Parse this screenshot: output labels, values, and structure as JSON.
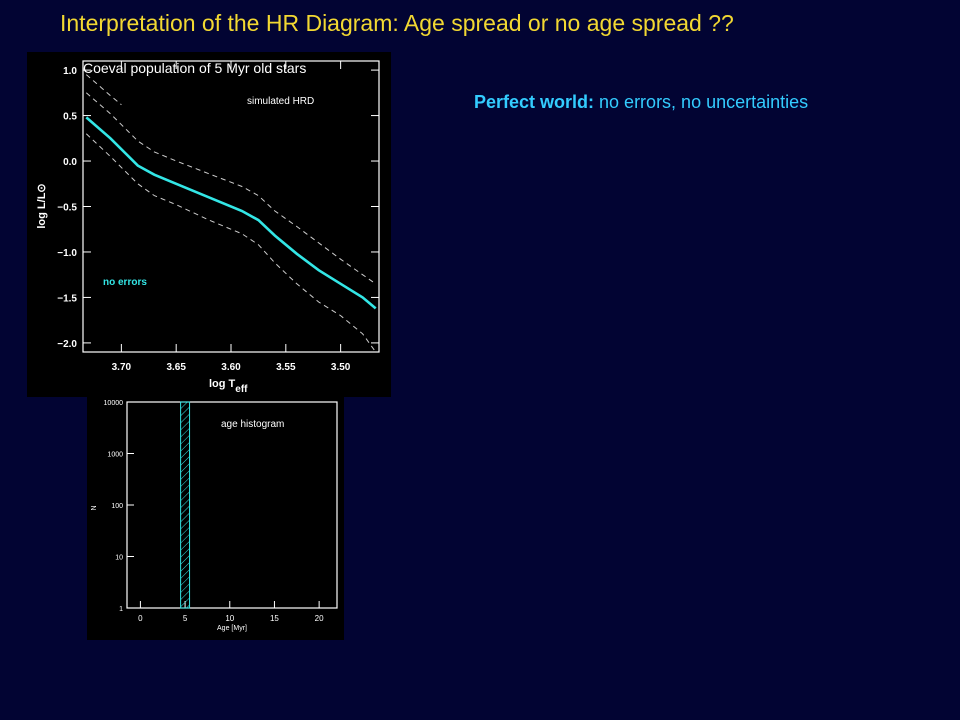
{
  "slide": {
    "title": "Interpretation of the HR Diagram:  Age spread or no age spread ??",
    "subtitle_bold": "Perfect world:",
    "subtitle_rest": " no errors, no uncertainties",
    "title_color": "#f2d832",
    "subtitle_color": "#33ccff",
    "background": "#020433"
  },
  "chart_data": [
    {
      "type": "line",
      "title": "Coeval population of 5 Myr old stars",
      "annotation": "simulated HRD",
      "legend_label": "no errors",
      "xlabel_main": "log T",
      "xlabel_sub": "eff",
      "ylabel": "log L/L⊙",
      "x_reversed": true,
      "xlim": [
        3.735,
        3.465
      ],
      "ylim": [
        -2.1,
        1.1
      ],
      "xticks": [
        3.7,
        3.65,
        3.6,
        3.55,
        3.5
      ],
      "xtick_labels": [
        "3.70",
        "3.65",
        "3.60",
        "3.55",
        "3.50"
      ],
      "yticks": [
        1.0,
        0.5,
        0.0,
        -0.5,
        -1.0,
        -1.5,
        -2.0
      ],
      "ytick_labels": [
        "1.0",
        "0.5",
        "0.0",
        "−0.5",
        "−1.0",
        "−1.5",
        "−2.0"
      ],
      "series": [
        {
          "role": "isochrone",
          "color": "#33e6e6",
          "x": [
            3.732,
            3.71,
            3.685,
            3.67,
            3.65,
            3.62,
            3.59,
            3.575,
            3.56,
            3.54,
            3.52,
            3.5,
            3.48,
            3.468
          ],
          "y": [
            0.48,
            0.25,
            -0.05,
            -0.15,
            -0.25,
            -0.4,
            -0.55,
            -0.65,
            -0.82,
            -1.02,
            -1.2,
            -1.35,
            -1.5,
            -1.62
          ]
        },
        {
          "role": "upper-bound",
          "color": "#cccccc",
          "dashed": true,
          "x": [
            3.732,
            3.71,
            3.685,
            3.67,
            3.65,
            3.62,
            3.59,
            3.575,
            3.56,
            3.54,
            3.52,
            3.5,
            3.48,
            3.468
          ],
          "y": [
            0.75,
            0.52,
            0.22,
            0.1,
            0.0,
            -0.14,
            -0.28,
            -0.38,
            -0.55,
            -0.72,
            -0.9,
            -1.08,
            -1.25,
            -1.35
          ]
        },
        {
          "role": "lower-bound",
          "color": "#cccccc",
          "dashed": true,
          "x": [
            3.732,
            3.71,
            3.685,
            3.67,
            3.65,
            3.62,
            3.59,
            3.575,
            3.56,
            3.54,
            3.52,
            3.5,
            3.48,
            3.468
          ],
          "y": [
            0.3,
            0.05,
            -0.25,
            -0.38,
            -0.48,
            -0.65,
            -0.8,
            -0.92,
            -1.12,
            -1.35,
            -1.55,
            -1.7,
            -1.9,
            -2.1
          ]
        },
        {
          "role": "outer-envelope",
          "color": "#cccccc",
          "dashed": true,
          "x": [
            3.732,
            3.71,
            3.7
          ],
          "y": [
            0.95,
            0.72,
            0.62
          ]
        }
      ]
    },
    {
      "type": "bar",
      "title": "age histogram",
      "xlabel": "Age [Myr]",
      "ylabel": "N",
      "y_scale": "log",
      "xlim": [
        -1.5,
        22
      ],
      "ylim": [
        1,
        10000
      ],
      "xticks": [
        0,
        5,
        10,
        15,
        20
      ],
      "xtick_labels": [
        "0",
        "5",
        "10",
        "15",
        "20"
      ],
      "yticks": [
        1,
        10,
        100,
        1000,
        10000
      ],
      "ytick_labels": [
        "1",
        "10",
        "100",
        "1000",
        "10000"
      ],
      "bars": [
        {
          "x_start": 4.5,
          "x_end": 5.5,
          "value": 10000,
          "color": "#33e6e6",
          "hatch": true
        }
      ]
    }
  ]
}
